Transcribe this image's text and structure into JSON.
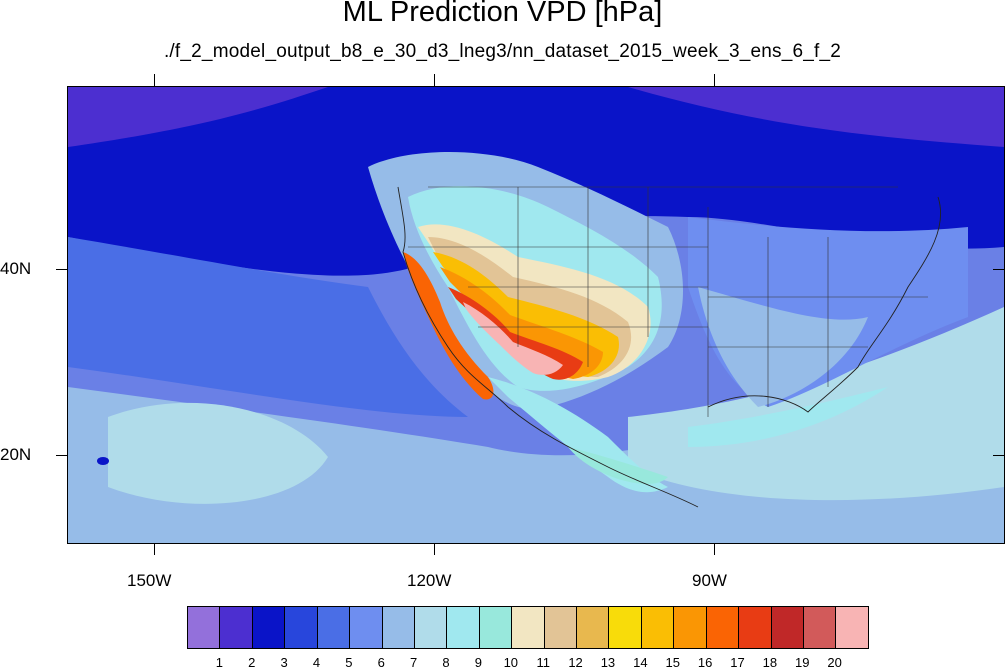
{
  "title": "ML Prediction VPD [hPa]",
  "subtitle": "./f_2_model_output_b8_e_30_d3_lneg3/nn_dataset_2015_week_3_ens_6_f_2",
  "lat_labels": [
    "40N",
    "20N"
  ],
  "lon_labels": [
    "150W",
    "120W",
    "90W"
  ],
  "colorbar": {
    "colors": [
      "#9370db",
      "#4c2fd0",
      "#0a14c8",
      "#2846dc",
      "#4a6ee6",
      "#6e8ef0",
      "#96bce8",
      "#b0dcea",
      "#a0e8ef",
      "#98e8dc",
      "#f2e6c2",
      "#e2c496",
      "#e8b84e",
      "#f8dc0a",
      "#fabe04",
      "#fa9604",
      "#fa6404",
      "#e83c14",
      "#c02828",
      "#d25a5a",
      "#f8b4b4"
    ],
    "labels": [
      "1",
      "2",
      "3",
      "4",
      "5",
      "6",
      "7",
      "8",
      "9",
      "10",
      "11",
      "12",
      "13",
      "14",
      "15",
      "16",
      "17",
      "18",
      "19",
      "20"
    ]
  }
}
